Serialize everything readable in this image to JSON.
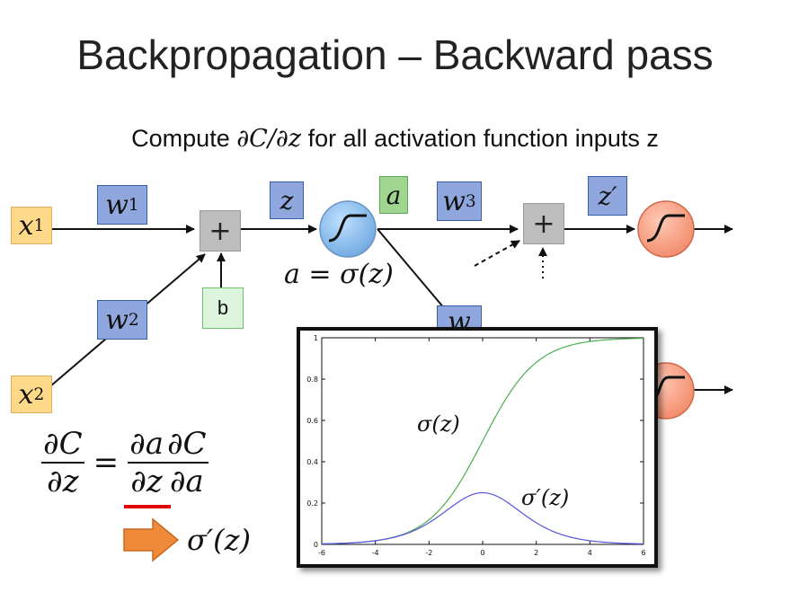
{
  "title": "Backpropagation – Backward pass",
  "subtitle_prefix": "Compute ",
  "subtitle_math": "∂C/∂z",
  "subtitle_suffix": " for all activation function inputs z",
  "nodes": {
    "x1": "x",
    "x1_sub": "1",
    "x2": "x",
    "x2_sub": "2",
    "w1": "w",
    "w1_sub": "1",
    "w2": "w",
    "w2_sub": "2",
    "w3": "w",
    "w3_sub": "3",
    "w4": "w",
    "b": "b",
    "z": "z",
    "a": "a",
    "zprime": "z′",
    "plus1": "+",
    "plus2": "+",
    "a_eq": "a = σ(z)"
  },
  "equation": {
    "lhs_num": "∂C",
    "lhs_den": "∂z",
    "eq": "=",
    "r1_num": "∂a",
    "r1_den": "∂z",
    "r2_num": "∂C",
    "r2_den": "∂a",
    "result": "σ′(z)"
  },
  "chart_data": {
    "type": "line",
    "xlim": [
      -6,
      6
    ],
    "ylim": [
      0,
      1
    ],
    "xticks": [
      "-6",
      "-4",
      "-2",
      "0",
      "2",
      "4",
      "6"
    ],
    "yticks": [
      "0",
      "0.2",
      "0.4",
      "0.6",
      "0.8",
      "1"
    ],
    "series": [
      {
        "name": "σ(z)",
        "color": "#4caf50",
        "x": [
          -6,
          -5,
          -4,
          -3,
          -2,
          -1,
          0,
          1,
          2,
          3,
          4,
          5,
          6
        ],
        "y": [
          0.0025,
          0.0067,
          0.018,
          0.047,
          0.119,
          0.269,
          0.5,
          0.731,
          0.881,
          0.953,
          0.982,
          0.993,
          0.9975
        ]
      },
      {
        "name": "σ′(z)",
        "color": "#5555dd",
        "x": [
          -6,
          -5,
          -4,
          -3,
          -2,
          -1,
          0,
          1,
          2,
          3,
          4,
          5,
          6
        ],
        "y": [
          0.0025,
          0.0066,
          0.0177,
          0.0452,
          0.105,
          0.197,
          0.25,
          0.197,
          0.105,
          0.0452,
          0.0177,
          0.0066,
          0.0025
        ]
      }
    ],
    "labels": {
      "sigma": "σ(z)",
      "sigma_prime": "σ′(z)"
    }
  }
}
